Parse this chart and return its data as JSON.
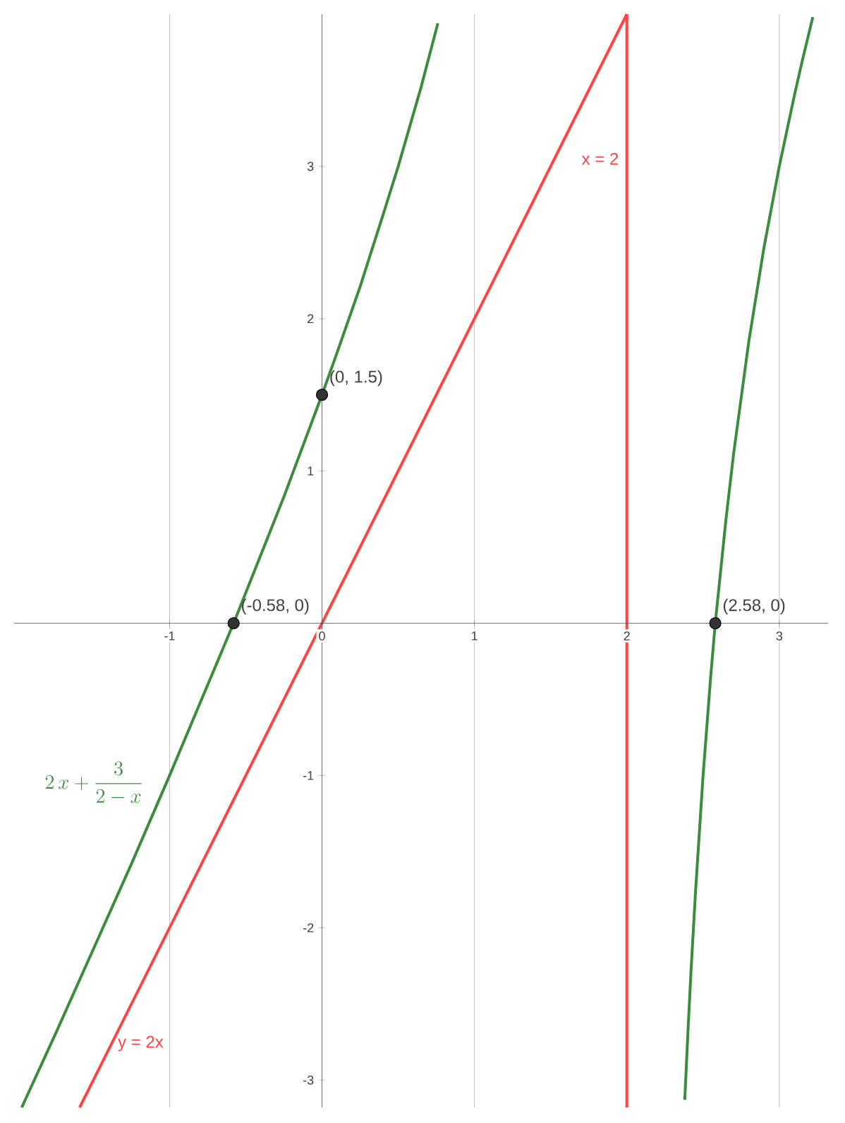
{
  "chart_data": {
    "type": "line",
    "xlim": [
      -2.02,
      3.32
    ],
    "ylim": [
      -3.18,
      4
    ],
    "xticks": [
      -1,
      0,
      1,
      2,
      3
    ],
    "yticks": [
      -3,
      -2,
      -1,
      1,
      2,
      3
    ],
    "grid": "x",
    "series": [
      {
        "name": "2\\,x+\\frac{3}{2-x}",
        "color": "#3d8b3d",
        "x": [
          -1.97,
          -1.75,
          -1.5,
          -1.25,
          -1,
          -0.58,
          -0.5,
          -0.25,
          0,
          0.1,
          0.25,
          0.4,
          0.5,
          0.65,
          0.76,
          2,
          2.38,
          2.4,
          2.42,
          2.45,
          2.5,
          2.55,
          2.58,
          2.65,
          2.7,
          2.8,
          2.9,
          3,
          3.1,
          3.15,
          3.22
        ],
        "values": [
          -3.18,
          -2.7,
          -2.14,
          -1.58,
          -1,
          0,
          0.2,
          0.83,
          1.5,
          1.78,
          2.21,
          2.68,
          3,
          3.52,
          3.94,
          null,
          -3.13,
          -2.7,
          -2.3,
          -1.77,
          -1,
          -0.35,
          0,
          0.68,
          1.11,
          1.85,
          2.47,
          3,
          3.47,
          3.69,
          3.98
        ]
      },
      {
        "name": "y = 2x",
        "color": "#ff4444",
        "x": [
          -1.59,
          2
        ],
        "values": [
          -3.18,
          4
        ]
      },
      {
        "type": "scatter",
        "color": "#333333",
        "x": [
          0,
          -0.58,
          2.58
        ],
        "values": [
          1.5,
          0,
          0
        ],
        "value_labels": [
          "(0, 1.5)",
          "(-0.58, 0)",
          "(2.58, 0)"
        ]
      }
    ],
    "ref_lines": [
      {
        "axis": "x",
        "value": 2,
        "label": "x = 2",
        "color": "#ff4444"
      }
    ]
  }
}
